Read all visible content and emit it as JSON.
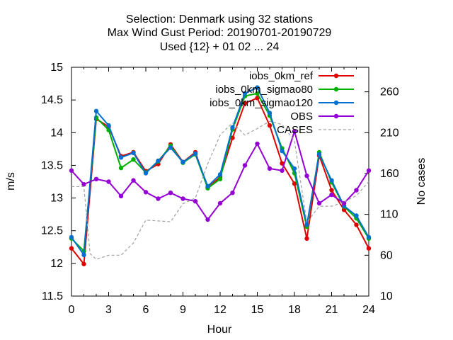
{
  "chart_data": {
    "type": "line",
    "title": [
      "Selection: Denmark using    32 stations",
      "Max Wind Gust   Period: 20190701-20190729",
      "Used {12} + 01 02 ... 24"
    ],
    "xlabel": "Hour",
    "ylabel": "m/s",
    "y2label": "No cases",
    "xlim": [
      0,
      24
    ],
    "ylim": [
      11.5,
      15
    ],
    "y2lim": [
      10,
      290
    ],
    "x_ticks": [
      0,
      3,
      6,
      9,
      12,
      15,
      18,
      21,
      24
    ],
    "y_ticks": [
      11.5,
      12,
      12.5,
      13,
      13.5,
      14,
      14.5,
      15
    ],
    "y_tick_labels": [
      "11.5",
      "12",
      "12.5",
      "13",
      "13.5",
      "14",
      "14.5",
      "15"
    ],
    "y2_ticks": [
      10,
      60,
      110,
      160,
      210,
      260
    ],
    "grid": false,
    "legend_position": "top-right",
    "x": [
      0,
      1,
      2,
      3,
      4,
      5,
      6,
      7,
      8,
      9,
      10,
      11,
      12,
      13,
      14,
      15,
      16,
      17,
      18,
      19,
      20,
      21,
      22,
      23,
      24
    ],
    "series": [
      {
        "name": "iobs_0km_ref",
        "color": "#e00000",
        "axis": "y",
        "marker": "circle",
        "values": [
          12.23,
          11.99,
          14.21,
          14.09,
          13.64,
          13.7,
          13.41,
          13.52,
          13.82,
          13.55,
          13.7,
          13.16,
          13.32,
          13.92,
          14.45,
          14.53,
          14.11,
          13.53,
          13.22,
          12.38,
          13.65,
          13.12,
          12.82,
          12.59,
          12.23
        ]
      },
      {
        "name": "iobs_0km_sigmao80",
        "color": "#00b000",
        "axis": "y",
        "marker": "circle",
        "values": [
          12.38,
          12.19,
          14.23,
          14.04,
          13.46,
          13.59,
          13.39,
          13.56,
          13.8,
          13.54,
          13.67,
          13.15,
          13.29,
          14.05,
          14.56,
          14.6,
          14.26,
          13.76,
          13.38,
          12.56,
          13.7,
          13.24,
          12.87,
          12.69,
          12.38
        ]
      },
      {
        "name": "iobs_0km_sigmao120",
        "color": "#0070d0",
        "axis": "y",
        "marker": "circle",
        "values": [
          12.4,
          12.13,
          14.33,
          14.11,
          13.62,
          13.69,
          13.38,
          13.57,
          13.77,
          13.55,
          13.68,
          13.18,
          13.36,
          14.08,
          14.6,
          14.69,
          14.3,
          13.72,
          13.45,
          12.59,
          13.67,
          13.27,
          12.88,
          12.73,
          12.4
        ]
      },
      {
        "name": "OBS",
        "color": "#9400d3",
        "axis": "y",
        "marker": "circle",
        "values": [
          13.42,
          13.21,
          13.29,
          13.25,
          13.03,
          13.27,
          13.09,
          12.99,
          13.08,
          12.99,
          12.95,
          12.67,
          12.92,
          13.08,
          13.5,
          13.83,
          13.45,
          13.42,
          14.02,
          13.34,
          12.92,
          13.05,
          12.92,
          13.12,
          13.42
        ]
      },
      {
        "name": "CASES",
        "color": "#a0a0a0",
        "axis": "y2",
        "marker": "none",
        "dash": true,
        "x": [
          0,
          1,
          1.5,
          2,
          3,
          4,
          5,
          6,
          7,
          8,
          9,
          10,
          11,
          12,
          13,
          14,
          15,
          16,
          17,
          18,
          19,
          20,
          21,
          22,
          23,
          24
        ],
        "values": [
          144,
          144,
          62,
          55,
          60,
          60,
          75,
          103,
          102,
          101,
          123,
          130,
          172,
          207,
          222,
          207,
          215,
          224,
          220,
          200,
          100,
          120,
          120,
          125,
          133,
          150
        ]
      }
    ]
  }
}
